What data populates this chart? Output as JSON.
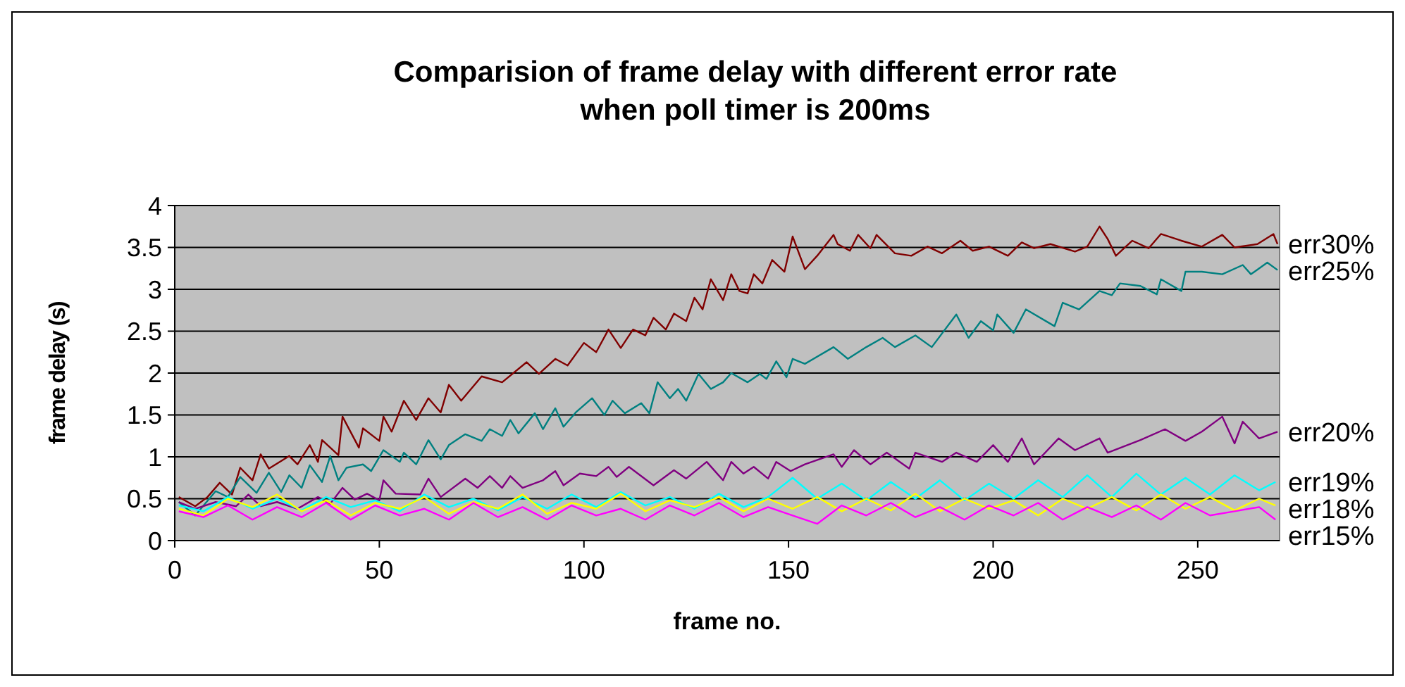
{
  "chart_data": {
    "type": "line",
    "title": "Comparision of frame delay with different error rate\nwhen poll timer is 200ms",
    "xlabel": "frame no.",
    "ylabel": "frame delay (s)",
    "xlim": [
      0,
      270
    ],
    "xticks": [
      0,
      50,
      100,
      150,
      200,
      250
    ],
    "ylim": [
      0,
      4
    ],
    "yticks": [
      0,
      0.5,
      1,
      1.5,
      2,
      2.5,
      3,
      3.5,
      4
    ],
    "grid": "y",
    "legend": false,
    "marker": "none",
    "line_style": "solid",
    "series": [
      {
        "name": "err30%",
        "color": "#800000",
        "x": [
          1,
          5,
          8,
          11,
          14,
          16,
          19,
          21,
          23,
          28,
          30,
          33,
          35,
          36,
          40,
          41,
          45,
          46,
          50,
          51,
          53,
          56,
          59,
          62,
          65,
          67,
          70,
          75,
          80,
          86,
          89,
          93,
          96,
          100,
          103,
          106,
          109,
          112,
          115,
          117,
          120,
          122,
          125,
          127,
          129,
          131,
          134,
          136,
          138,
          140,
          141.5,
          143.6,
          146,
          149,
          151,
          154,
          157,
          161,
          162,
          165,
          167,
          170,
          171.5,
          176,
          180,
          184,
          187.5,
          192,
          195,
          199,
          203.6,
          207,
          210,
          214,
          220,
          223,
          226,
          228,
          230,
          234,
          238,
          241,
          246,
          251,
          256,
          259,
          264.6,
          268.5,
          269.5
        ],
        "values": [
          0.52,
          0.41,
          0.52,
          0.69,
          0.55,
          0.87,
          0.72,
          1.03,
          0.86,
          1.01,
          0.91,
          1.14,
          0.94,
          1.2,
          1.02,
          1.48,
          1.11,
          1.34,
          1.19,
          1.48,
          1.3,
          1.67,
          1.44,
          1.7,
          1.53,
          1.86,
          1.67,
          1.96,
          1.89,
          2.13,
          1.99,
          2.17,
          2.09,
          2.36,
          2.25,
          2.52,
          2.3,
          2.52,
          2.45,
          2.66,
          2.52,
          2.71,
          2.62,
          2.9,
          2.76,
          3.12,
          2.87,
          3.18,
          2.98,
          2.95,
          3.18,
          3.07,
          3.35,
          3.21,
          3.63,
          3.24,
          3.4,
          3.65,
          3.54,
          3.46,
          3.65,
          3.49,
          3.65,
          3.43,
          3.4,
          3.51,
          3.43,
          3.58,
          3.46,
          3.51,
          3.4,
          3.56,
          3.49,
          3.54,
          3.45,
          3.51,
          3.75,
          3.6,
          3.4,
          3.58,
          3.49,
          3.66,
          3.58,
          3.51,
          3.65,
          3.5,
          3.54,
          3.66,
          3.54
        ]
      },
      {
        "name": "err25%",
        "color": "#008080",
        "x": [
          1,
          5,
          10,
          13,
          16,
          20,
          23,
          26,
          28,
          31,
          33,
          36,
          38,
          40,
          42,
          46,
          48,
          51,
          55,
          56,
          59,
          62,
          65,
          67,
          71,
          75,
          77,
          80,
          82,
          84,
          88,
          90,
          93,
          95,
          98,
          102,
          105,
          107,
          110,
          114,
          116,
          118,
          121,
          123,
          125,
          128,
          131,
          134,
          136,
          140,
          143,
          144.6,
          147,
          149.5,
          151,
          154,
          161,
          164.5,
          169,
          173,
          176,
          181,
          185,
          191,
          194,
          197,
          200,
          201,
          205,
          208,
          215,
          217,
          221,
          226,
          229,
          231,
          236,
          240,
          241,
          246,
          247,
          251,
          256,
          261,
          263,
          267,
          269.5
        ],
        "values": [
          0.46,
          0.3,
          0.59,
          0.52,
          0.76,
          0.57,
          0.81,
          0.58,
          0.78,
          0.63,
          0.9,
          0.7,
          1.01,
          0.72,
          0.87,
          0.91,
          0.83,
          1.08,
          0.94,
          1.05,
          0.91,
          1.2,
          0.97,
          1.14,
          1.27,
          1.19,
          1.33,
          1.25,
          1.44,
          1.28,
          1.52,
          1.33,
          1.58,
          1.36,
          1.53,
          1.7,
          1.5,
          1.67,
          1.52,
          1.64,
          1.52,
          1.89,
          1.7,
          1.81,
          1.67,
          1.99,
          1.81,
          1.89,
          2.0,
          1.89,
          1.99,
          1.93,
          2.14,
          1.95,
          2.17,
          2.11,
          2.31,
          2.17,
          2.31,
          2.42,
          2.31,
          2.45,
          2.31,
          2.7,
          2.42,
          2.62,
          2.51,
          2.7,
          2.48,
          2.76,
          2.56,
          2.84,
          2.76,
          2.98,
          2.93,
          3.07,
          3.04,
          2.94,
          3.12,
          2.98,
          3.21,
          3.21,
          3.18,
          3.29,
          3.18,
          3.32,
          3.23
        ]
      },
      {
        "name": "err20%",
        "color": "#800080",
        "x": [
          1,
          5,
          10,
          15,
          18,
          21,
          25,
          30,
          35,
          38,
          41,
          44,
          47,
          50,
          51,
          54,
          60,
          62,
          65,
          71,
          74,
          77,
          80,
          82,
          85,
          90,
          93,
          95,
          99,
          103,
          106,
          108,
          111,
          117,
          122,
          125,
          130,
          134,
          136,
          139,
          141.5,
          145,
          147,
          150.5,
          154,
          161,
          163,
          166,
          170,
          174,
          179.5,
          181,
          187.5,
          191,
          196,
          200,
          203.6,
          207,
          210,
          216,
          220,
          226,
          228,
          236,
          242,
          247,
          251,
          256,
          259,
          261,
          265,
          269.5
        ],
        "values": [
          0.46,
          0.38,
          0.46,
          0.41,
          0.55,
          0.41,
          0.46,
          0.38,
          0.52,
          0.44,
          0.63,
          0.49,
          0.56,
          0.48,
          0.72,
          0.56,
          0.55,
          0.74,
          0.52,
          0.74,
          0.63,
          0.77,
          0.63,
          0.77,
          0.63,
          0.72,
          0.83,
          0.66,
          0.8,
          0.77,
          0.88,
          0.76,
          0.88,
          0.66,
          0.84,
          0.74,
          0.94,
          0.72,
          0.94,
          0.8,
          0.88,
          0.74,
          0.94,
          0.83,
          0.91,
          1.03,
          0.88,
          1.08,
          0.91,
          1.05,
          0.86,
          1.05,
          0.94,
          1.05,
          0.94,
          1.14,
          0.94,
          1.22,
          0.91,
          1.22,
          1.08,
          1.22,
          1.05,
          1.2,
          1.33,
          1.19,
          1.3,
          1.48,
          1.16,
          1.42,
          1.22,
          1.3
        ]
      },
      {
        "name": "err19%",
        "color": "#00ffff",
        "x": [
          1,
          7,
          13,
          19,
          25,
          31,
          37,
          43,
          49,
          55,
          61,
          67,
          73,
          79,
          85,
          91,
          97,
          103,
          109,
          115,
          121,
          127,
          133,
          139,
          145,
          151,
          157,
          163,
          169,
          175,
          181,
          187,
          193,
          199,
          205,
          211,
          217,
          223,
          229,
          235,
          241,
          247,
          253,
          259,
          265,
          269
        ],
        "values": [
          0.42,
          0.35,
          0.52,
          0.38,
          0.5,
          0.36,
          0.52,
          0.4,
          0.48,
          0.35,
          0.55,
          0.4,
          0.5,
          0.36,
          0.52,
          0.38,
          0.55,
          0.4,
          0.58,
          0.42,
          0.52,
          0.38,
          0.56,
          0.4,
          0.52,
          0.75,
          0.5,
          0.68,
          0.48,
          0.7,
          0.5,
          0.72,
          0.48,
          0.68,
          0.5,
          0.72,
          0.52,
          0.78,
          0.52,
          0.8,
          0.55,
          0.75,
          0.55,
          0.78,
          0.6,
          0.7
        ]
      },
      {
        "name": "err18%",
        "color": "#ffff00",
        "x": [
          1,
          7,
          13,
          19,
          25,
          31,
          37,
          43,
          49,
          55,
          61,
          67,
          73,
          79,
          85,
          91,
          97,
          103,
          109,
          115,
          121,
          127,
          133,
          139,
          145,
          151,
          157,
          163,
          169,
          175,
          181,
          187,
          193,
          199,
          205,
          211,
          217,
          223,
          229,
          235,
          241,
          247,
          253,
          259,
          265,
          269
        ],
        "values": [
          0.38,
          0.3,
          0.5,
          0.4,
          0.55,
          0.35,
          0.48,
          0.3,
          0.45,
          0.38,
          0.52,
          0.32,
          0.46,
          0.38,
          0.55,
          0.32,
          0.45,
          0.38,
          0.56,
          0.35,
          0.48,
          0.4,
          0.52,
          0.35,
          0.5,
          0.38,
          0.52,
          0.35,
          0.5,
          0.36,
          0.56,
          0.35,
          0.5,
          0.38,
          0.48,
          0.3,
          0.5,
          0.38,
          0.52,
          0.36,
          0.55,
          0.38,
          0.52,
          0.36,
          0.5,
          0.42
        ]
      },
      {
        "name": "err15%",
        "color": "#ff00ff",
        "x": [
          1,
          7,
          13,
          19,
          25,
          31,
          37,
          43,
          49,
          55,
          61,
          67,
          73,
          79,
          85,
          91,
          97,
          103,
          109,
          115,
          121,
          127,
          133,
          139,
          145,
          151,
          157,
          163,
          169,
          175,
          181,
          187,
          193,
          199,
          205,
          211,
          217,
          223,
          229,
          235,
          241,
          247,
          253,
          259,
          265,
          269
        ],
        "values": [
          0.35,
          0.28,
          0.42,
          0.25,
          0.4,
          0.28,
          0.45,
          0.25,
          0.42,
          0.3,
          0.38,
          0.25,
          0.45,
          0.28,
          0.4,
          0.25,
          0.42,
          0.3,
          0.38,
          0.25,
          0.42,
          0.3,
          0.45,
          0.28,
          0.4,
          0.3,
          0.2,
          0.42,
          0.3,
          0.45,
          0.28,
          0.4,
          0.25,
          0.42,
          0.3,
          0.45,
          0.25,
          0.4,
          0.28,
          0.42,
          0.25,
          0.45,
          0.3,
          0.35,
          0.4,
          0.25
        ]
      }
    ]
  }
}
